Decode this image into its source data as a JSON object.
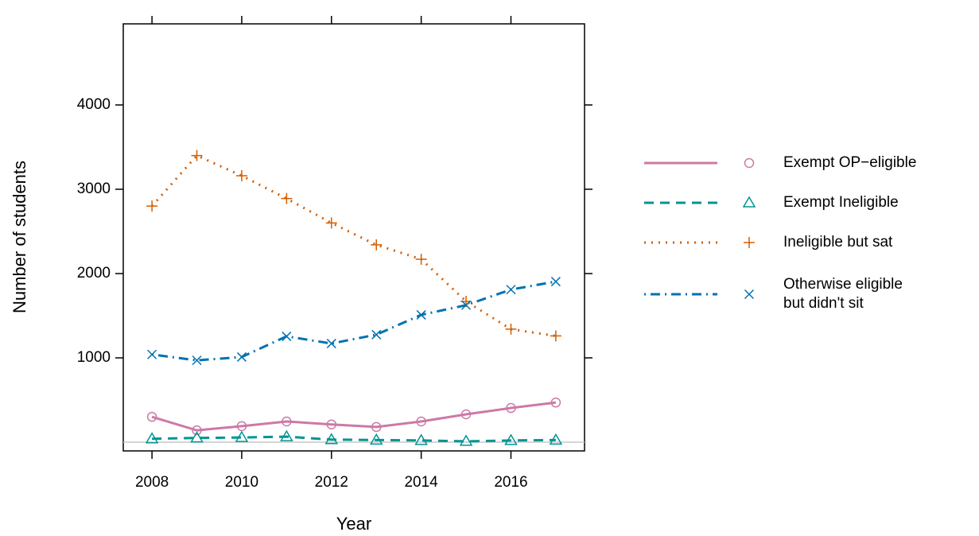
{
  "chart_data": {
    "type": "line",
    "x_label": "Year",
    "y_label": "Number of students",
    "x": [
      2008,
      2009,
      2010,
      2011,
      2012,
      2013,
      2014,
      2015,
      2016,
      2017
    ],
    "xlim": [
      2007.36,
      2017.64
    ],
    "xticks": [
      2008,
      2010,
      2012,
      2014,
      2016
    ],
    "ylim": [
      -104,
      4962
    ],
    "yticks": [
      1000,
      2000,
      3000,
      4000
    ],
    "hline": 0,
    "series": [
      {
        "name": "Exempt OP−eligible",
        "color": "#cc79a7",
        "dash": "solid",
        "marker": "circle",
        "values": [
          300,
          140,
          190,
          245,
          210,
          180,
          245,
          330,
          405,
          470
        ]
      },
      {
        "name": "Exempt Ineligible",
        "color": "#009593",
        "dash": "dashed",
        "marker": "triangle",
        "values": [
          40,
          50,
          55,
          65,
          30,
          25,
          20,
          10,
          20,
          25
        ]
      },
      {
        "name": "Ineligible but sat",
        "color": "#d55e00",
        "dash": "dotted",
        "marker": "plus",
        "values": [
          2800,
          3400,
          3160,
          2890,
          2600,
          2340,
          2170,
          1670,
          1340,
          1260
        ]
      },
      {
        "name": "Otherwise eligible\nbut didn't sit",
        "color": "#0072b2",
        "dash": "dotdash",
        "marker": "cross",
        "values": [
          1040,
          970,
          1010,
          1255,
          1170,
          1275,
          1510,
          1625,
          1810,
          1905
        ]
      }
    ]
  }
}
